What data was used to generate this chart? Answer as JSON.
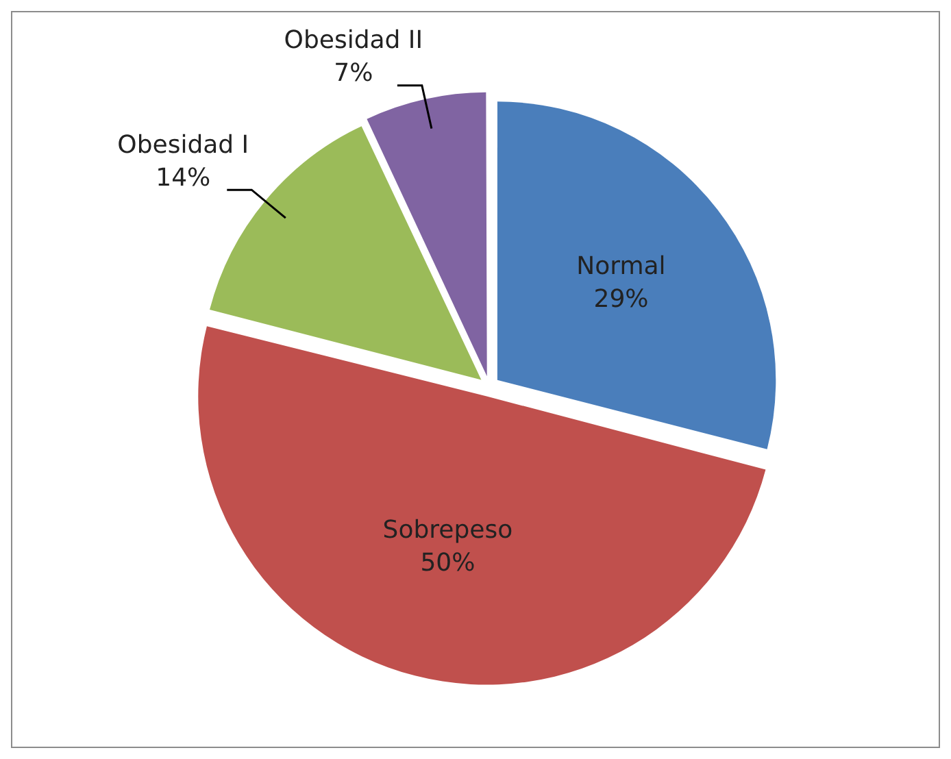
{
  "chart_data": {
    "type": "pie",
    "categories": [
      "Normal",
      "Sobrepeso",
      "Obesidad I",
      "Obesidad II"
    ],
    "values": [
      29,
      50,
      14,
      7
    ],
    "value_labels": [
      "29%",
      "50%",
      "14%",
      "7%"
    ],
    "colors": [
      "#4a7ebb",
      "#c0504d",
      "#9bbb59",
      "#8064a2"
    ],
    "legend": false
  }
}
